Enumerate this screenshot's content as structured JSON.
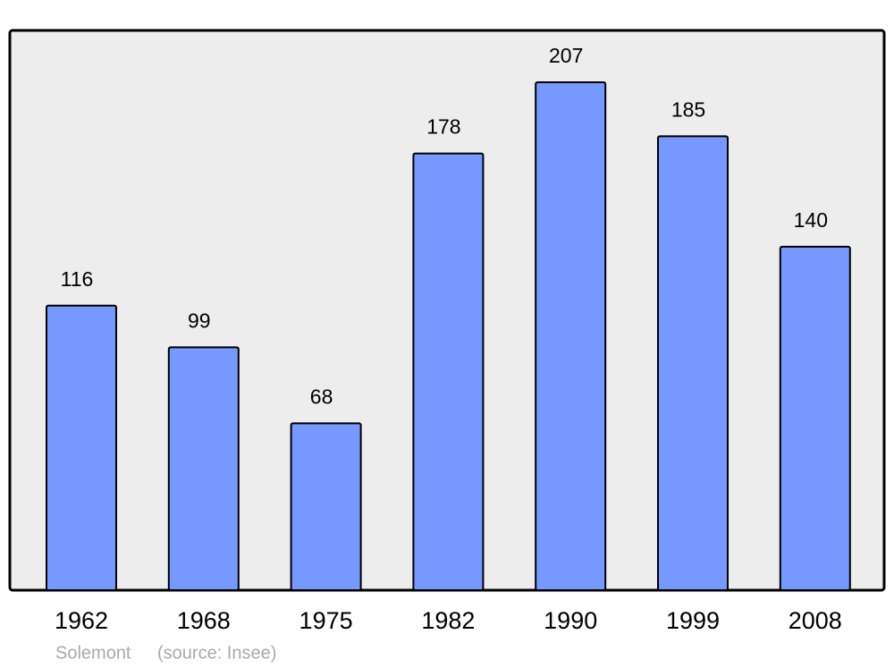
{
  "chart_data": {
    "type": "bar",
    "categories": [
      "1962",
      "1968",
      "1975",
      "1982",
      "1990",
      "1999",
      "2008"
    ],
    "values": [
      116,
      99,
      68,
      178,
      207,
      185,
      140
    ],
    "color": "#7799ff",
    "place": "Solemont",
    "source": "(source: Insee)"
  }
}
